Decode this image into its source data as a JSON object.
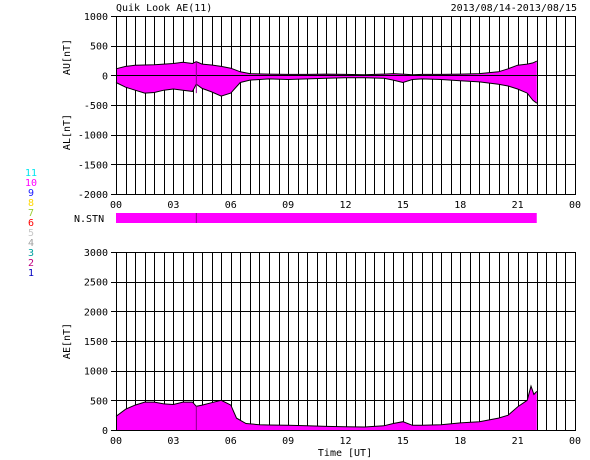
{
  "header": {
    "title": "Quik Look AE(11)",
    "date_range": "2013/08/14-2013/08/15"
  },
  "colors": {
    "fill": "#ff00ff",
    "line": "#000000",
    "marker": "#8a008a"
  },
  "station_legend": [
    {
      "label": "11",
      "color": "#00e5ee"
    },
    {
      "label": "10",
      "color": "#ff00ff"
    },
    {
      "label": "9",
      "color": "#1a1aff"
    },
    {
      "label": "8",
      "color": "#ffd700"
    },
    {
      "label": "7",
      "color": "#9acd32"
    },
    {
      "label": "6",
      "color": "#ff0000"
    },
    {
      "label": "5",
      "color": "#c8c8c8"
    },
    {
      "label": "4",
      "color": "#a0a0a0"
    },
    {
      "label": "3",
      "color": "#00a0a0"
    },
    {
      "label": "2",
      "color": "#c00080"
    },
    {
      "label": "1",
      "color": "#0000c0"
    }
  ],
  "chart_data": [
    {
      "type": "area",
      "panel": "AU/AL",
      "ylabel_upper": "AU[nT]",
      "ylabel_lower": "AL[nT]",
      "ylim": [
        -2000,
        1000
      ],
      "yticks": [
        "1000",
        "500",
        "0",
        "-500",
        "-1000",
        "-1500",
        "-2000"
      ],
      "ytick_values": [
        1000,
        500,
        0,
        -500,
        -1000,
        -1500,
        -2000
      ],
      "xlim": [
        0,
        24
      ],
      "xticks": [
        "00",
        "03",
        "06",
        "09",
        "12",
        "15",
        "18",
        "21",
        "00"
      ],
      "grid": true,
      "series": [
        {
          "name": "AU",
          "x": [
            0,
            0.5,
            1,
            1.5,
            2,
            2.5,
            3,
            3.5,
            4,
            4.2,
            4.5,
            5,
            5.5,
            6,
            6.5,
            7,
            8,
            9,
            10,
            11,
            12,
            13,
            14,
            14.5,
            15,
            15.5,
            16,
            17,
            18,
            19,
            20,
            20.5,
            21,
            21.5,
            21.8,
            22.0
          ],
          "values": [
            110,
            150,
            170,
            175,
            180,
            190,
            200,
            220,
            200,
            230,
            190,
            175,
            150,
            120,
            60,
            30,
            20,
            15,
            15,
            20,
            15,
            10,
            20,
            30,
            20,
            10,
            15,
            15,
            20,
            30,
            60,
            110,
            170,
            190,
            210,
            240
          ]
        },
        {
          "name": "AL",
          "x": [
            0,
            0.5,
            1,
            1.5,
            2,
            2.5,
            3,
            3.5,
            4,
            4.2,
            4.5,
            5,
            5.5,
            6,
            6.5,
            7,
            8,
            9,
            10,
            11,
            12,
            13,
            14,
            14.5,
            15,
            15.5,
            16,
            17,
            18,
            19,
            20,
            20.5,
            21,
            21.5,
            21.8,
            22.0
          ],
          "values": [
            -120,
            -200,
            -250,
            -300,
            -290,
            -250,
            -230,
            -250,
            -270,
            -150,
            -220,
            -280,
            -350,
            -300,
            -120,
            -80,
            -60,
            -70,
            -60,
            -50,
            -40,
            -40,
            -50,
            -80,
            -120,
            -70,
            -60,
            -70,
            -90,
            -110,
            -150,
            -180,
            -230,
            -300,
            -420,
            -470
          ]
        }
      ]
    },
    {
      "type": "bar",
      "panel": "N.STN",
      "label": "N.STN",
      "x_start": 0,
      "x_end": 22.0,
      "marker_x": 4.2
    },
    {
      "type": "area",
      "panel": "AE",
      "ylabel": "AE[nT]",
      "xlabel": "Time [UT]",
      "ylim": [
        0,
        3000
      ],
      "yticks": [
        "3000",
        "2500",
        "2000",
        "1500",
        "1000",
        "500",
        "0"
      ],
      "ytick_values": [
        3000,
        2500,
        2000,
        1500,
        1000,
        500,
        0
      ],
      "xlim": [
        0,
        24
      ],
      "xticks": [
        "00",
        "03",
        "06",
        "09",
        "12",
        "15",
        "18",
        "21",
        "00"
      ],
      "grid": true,
      "series": [
        {
          "name": "AE",
          "x": [
            0,
            0.5,
            1,
            1.5,
            2,
            2.5,
            3,
            3.5,
            4,
            4.2,
            4.5,
            5,
            5.5,
            6,
            6.3,
            6.8,
            7.5,
            8,
            9,
            10,
            11,
            12,
            13,
            14,
            14.5,
            15,
            15.5,
            16,
            17,
            18,
            19,
            20,
            20.5,
            21,
            21.5,
            21.7,
            21.85,
            22.0
          ],
          "values": [
            230,
            350,
            420,
            470,
            470,
            440,
            430,
            470,
            470,
            400,
            420,
            460,
            500,
            420,
            200,
            110,
            90,
            85,
            80,
            70,
            60,
            55,
            50,
            70,
            110,
            140,
            80,
            80,
            90,
            120,
            140,
            200,
            250,
            390,
            500,
            740,
            600,
            650
          ]
        }
      ]
    }
  ]
}
